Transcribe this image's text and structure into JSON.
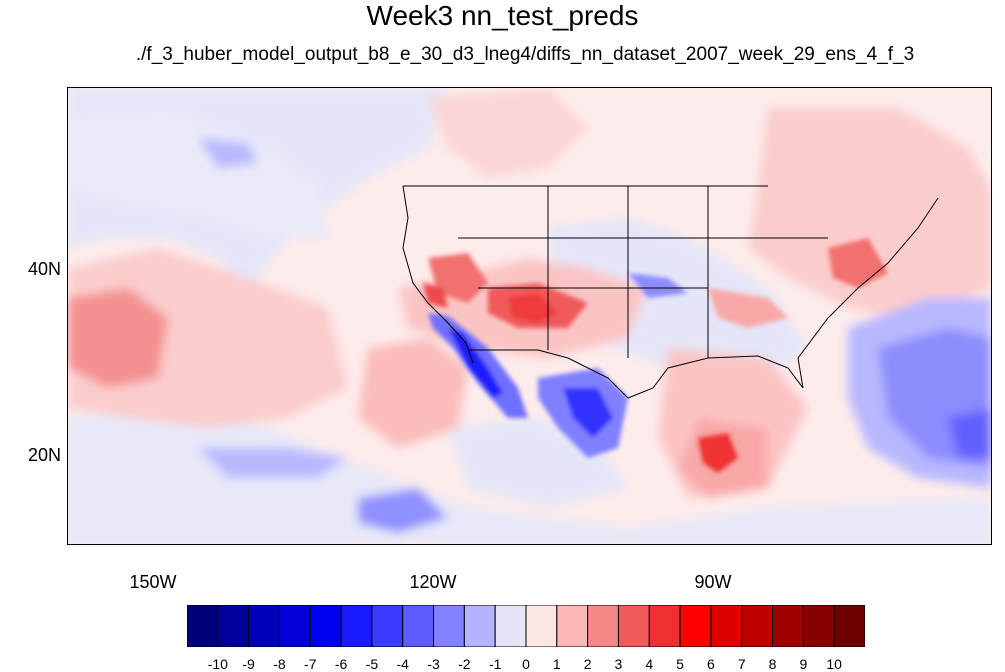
{
  "title": "Week3 nn_test_preds",
  "subtitle": "./f_3_huber_model_output_b8_e_30_d3_lneg4/diffs_nn_dataset_2007_week_29_ens_4_f_3",
  "axes": {
    "lat_labels": [
      "40N",
      "20N"
    ],
    "lon_labels": [
      "150W",
      "120W",
      "90W"
    ]
  },
  "colorbar": {
    "labels": [
      "-10",
      "-9",
      "-8",
      "-7",
      "-6",
      "-5",
      "-4",
      "-3",
      "-2",
      "-1",
      "0",
      "1",
      "2",
      "3",
      "4",
      "5",
      "6",
      "7",
      "8",
      "9",
      "10"
    ],
    "colors": [
      "#00007a",
      "#00009a",
      "#0000b8",
      "#0000d6",
      "#0000f0",
      "#1a1aff",
      "#3a3aff",
      "#5c5cff",
      "#8282ff",
      "#b3b3ff",
      "#e4e6f8",
      "#fde6e6",
      "#fbb6b6",
      "#f78888",
      "#f25a5a",
      "#ef3030",
      "#ff0000",
      "#e00000",
      "#c00000",
      "#a00000",
      "#880000",
      "#6e0000"
    ]
  }
}
